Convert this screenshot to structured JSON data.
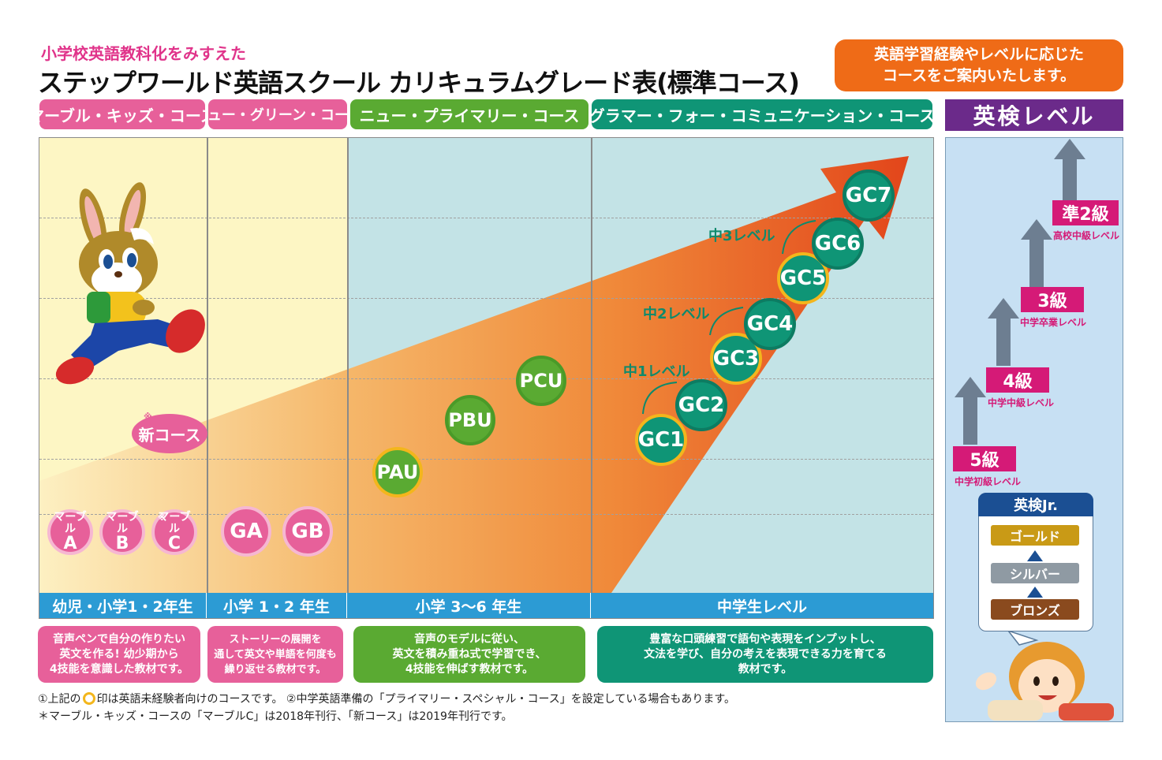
{
  "header": {
    "subtitle": "小学校英語教科化をみすえた",
    "title": "ステップワールド英語スクール カリキュラムグレード表(標準コース)",
    "guide_line1": "英語学習経験やレベルに応じた",
    "guide_line2": "コースをご案内いたします。"
  },
  "courses": [
    {
      "label": "マーブル・キッズ・コース",
      "color": "#e7609a"
    },
    {
      "label": "ニュー・グリーン・コース",
      "color": "#e7609a"
    },
    {
      "label": "ニュー・プライマリー・コース",
      "color": "#5aaa32"
    },
    {
      "label": "グラマー・フォー・コミュニケーション・コース",
      "color": "#0f9576"
    }
  ],
  "eiken_header": "英検レベル",
  "chart": {
    "new_course_mark": "※",
    "new_course": "新コース",
    "marble": [
      {
        "top": "マーブル",
        "bottom": "A",
        "mark": ""
      },
      {
        "top": "マーブル",
        "bottom": "B",
        "mark": ""
      },
      {
        "top": "マーブル",
        "bottom": "C",
        "mark": "※"
      }
    ],
    "green": [
      "GA",
      "GB"
    ],
    "primary": [
      "PAU",
      "PBU",
      "PCU"
    ],
    "gc": [
      "GC1",
      "GC2",
      "GC3",
      "GC4",
      "GC5",
      "GC6",
      "GC7"
    ],
    "level_labels": [
      "中1レベル",
      "中2レベル",
      "中3レベル"
    ]
  },
  "grades": [
    "幼児・小学1・2年生",
    "小学 1・2 年生",
    "小学 3〜6 年生",
    "中学生レベル"
  ],
  "descriptions": [
    {
      "lines": [
        "音声ペンで自分の作りたい",
        "英文を作る! 幼少期から",
        "4技能を意識した教材です。"
      ],
      "color": "#e7609a"
    },
    {
      "lines": [
        "ストーリーの展開を",
        "通して英文や単語を何度も",
        "繰り返せる教材です。"
      ],
      "color": "#e7609a"
    },
    {
      "lines": [
        "音声のモデルに従い、",
        "英文を積み重ね式で学習でき、",
        "4技能を伸ばす教材です。"
      ],
      "color": "#5aaa32"
    },
    {
      "lines": [
        "豊富な口頭練習で語句や表現をインプットし、",
        "文法を学び、自分の考えを表現できる力を育てる",
        "教材です。"
      ],
      "color": "#0f9576"
    }
  ],
  "footnotes": {
    "line1_a": "①上記の",
    "line1_b": "印は英語未経験者向けのコースです。 ②中学英語準備の「プライマリー・スペシャル・コース」を設定している場合もあります。",
    "line2": "＊マーブル・キッズ・コースの「マーブルC」は2018年刊行、「新コース」は2019年刊行です。"
  },
  "eiken": {
    "levels": [
      {
        "grade": "準2級",
        "note": "高校中級レベル"
      },
      {
        "grade": "3級",
        "note": "中学卒業レベル"
      },
      {
        "grade": "4級",
        "note": "中学中級レベル"
      },
      {
        "grade": "5級",
        "note": "中学初級レベル"
      }
    ],
    "jr_title": "英検Jr.",
    "jr_levels": [
      {
        "label": "ゴールド",
        "color": "#c99a16"
      },
      {
        "label": "シルバー",
        "color": "#8f9aa3"
      },
      {
        "label": "ブロンズ",
        "color": "#8a4a1e"
      }
    ]
  }
}
